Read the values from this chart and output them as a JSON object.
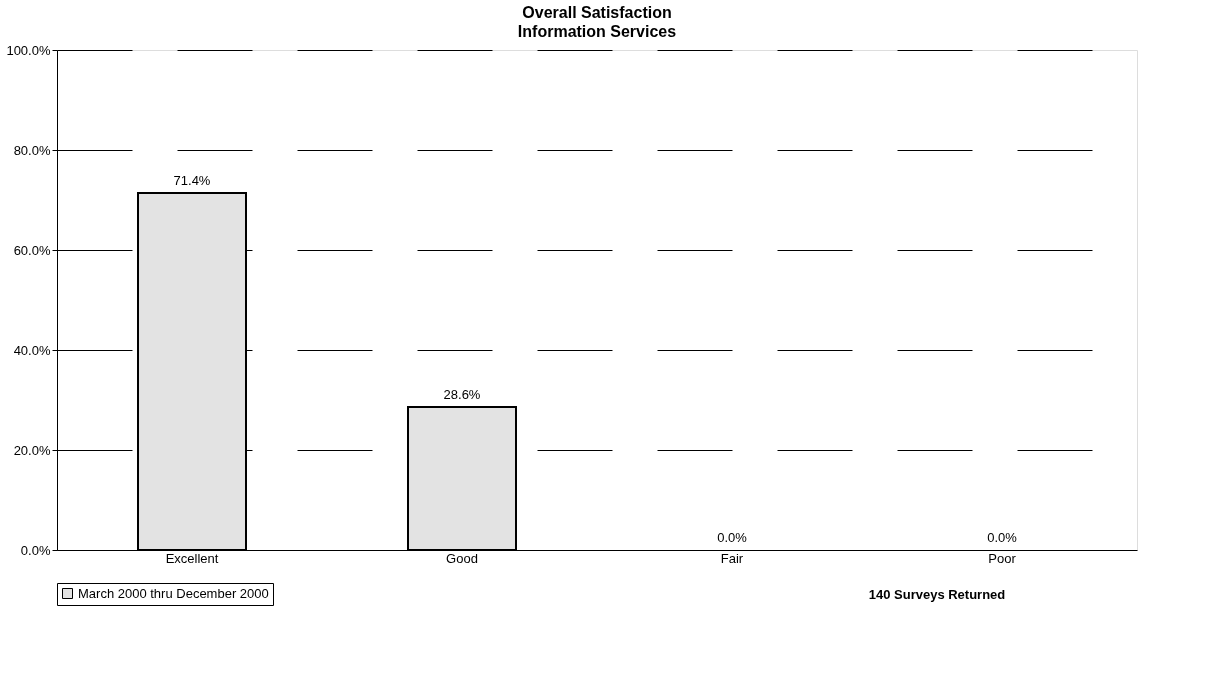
{
  "chart_data": {
    "type": "bar",
    "title": "Overall Satisfaction",
    "subtitle": "Information Services",
    "categories": [
      "Excellent",
      "Good",
      "Fair",
      "Poor"
    ],
    "series": [
      {
        "name": "March 2000 thru December 2000",
        "color": "#e3e3e3",
        "values": [
          71.4,
          28.6,
          0.0,
          0.0
        ]
      }
    ],
    "value_labels": [
      "71.4%",
      "28.6%",
      "0.0%",
      "0.0%"
    ],
    "ylim": [
      0,
      100
    ],
    "yticks": [
      {
        "value": 0,
        "label": "0.0%"
      },
      {
        "value": 20,
        "label": "20.0%"
      },
      {
        "value": 40,
        "label": "40.0%"
      },
      {
        "value": 60,
        "label": "60.0%"
      },
      {
        "value": 80,
        "label": "80.0%"
      },
      {
        "value": 100,
        "label": "100.0%"
      }
    ],
    "grid": "y",
    "legend": "bottom",
    "annotations": [
      "140 Surveys Returned"
    ]
  }
}
